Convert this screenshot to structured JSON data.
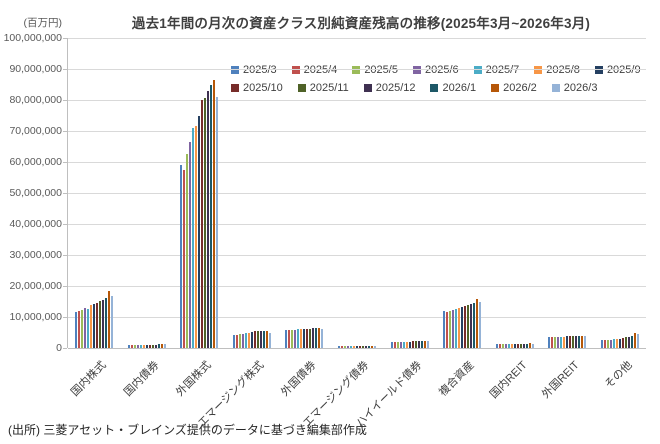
{
  "page": {
    "title": "過去1年間の月次の資産クラス別純資産残高の推移(2025年3月~2026年3月)",
    "source": "(出所) 三菱アセット・ブレインズ提供のデータに基づき編集部作成"
  },
  "chart_data": {
    "type": "bar",
    "title": "過去1年間の月次の資産クラス別純資産残高の推移(2025年3月~2026年3月)",
    "y_unit_label": "(百万円)",
    "xlabel": "",
    "ylabel": "百万円",
    "ylim": [
      0,
      100000000
    ],
    "y_tick_step": 10000000,
    "grid": true,
    "legend_position": "top-inside-two-rows",
    "legend_row_split": 7,
    "categories": [
      "国内株式",
      "国内債券",
      "外国株式",
      "エマージング株式",
      "外国債券",
      "エマージング債券",
      "ハイイールド債券",
      "複合資産",
      "国内REIT",
      "外国REIT",
      "その他"
    ],
    "series": [
      {
        "name": "2025/3",
        "color": "#4F81BD",
        "values": [
          11500000,
          1000000,
          59000000,
          4300000,
          5700000,
          700000,
          2000000,
          11900000,
          1300000,
          3600000,
          2500000
        ]
      },
      {
        "name": "2025/4",
        "color": "#C0504D",
        "values": [
          11900000,
          1000000,
          57500000,
          4300000,
          5700000,
          700000,
          2000000,
          11500000,
          1300000,
          3600000,
          2500000
        ]
      },
      {
        "name": "2025/5",
        "color": "#9BBB59",
        "values": [
          12300000,
          1000000,
          62500000,
          4500000,
          5800000,
          700000,
          2000000,
          12000000,
          1300000,
          3600000,
          2600000
        ]
      },
      {
        "name": "2025/6",
        "color": "#8064A2",
        "values": [
          12800000,
          1000000,
          66500000,
          4600000,
          5900000,
          700000,
          2100000,
          12300000,
          1300000,
          3700000,
          2700000
        ]
      },
      {
        "name": "2025/7",
        "color": "#4BACC6",
        "values": [
          12600000,
          1000000,
          71000000,
          4800000,
          6000000,
          700000,
          2100000,
          12500000,
          1300000,
          3700000,
          2800000
        ]
      },
      {
        "name": "2025/8",
        "color": "#F79646",
        "values": [
          13900000,
          1100000,
          71500000,
          5000000,
          6000000,
          700000,
          2100000,
          12800000,
          1300000,
          3700000,
          2900000
        ]
      },
      {
        "name": "2025/9",
        "color": "#254061",
        "values": [
          14300000,
          1100000,
          75000000,
          5300000,
          6100000,
          700000,
          2100000,
          13200000,
          1400000,
          3800000,
          3000000
        ]
      },
      {
        "name": "2025/10",
        "color": "#772C2A",
        "values": [
          14500000,
          1100000,
          80000000,
          5400000,
          6200000,
          700000,
          2200000,
          13500000,
          1400000,
          3800000,
          3200000
        ]
      },
      {
        "name": "2025/11",
        "color": "#4F6228",
        "values": [
          15100000,
          1100000,
          80500000,
          5500000,
          6200000,
          700000,
          2200000,
          13800000,
          1400000,
          3800000,
          3400000
        ]
      },
      {
        "name": "2025/12",
        "color": "#3F3151",
        "values": [
          15600000,
          1100000,
          83000000,
          5500000,
          6300000,
          700000,
          2200000,
          14200000,
          1400000,
          3900000,
          3600000
        ]
      },
      {
        "name": "2026/1",
        "color": "#1D5867",
        "values": [
          16100000,
          1200000,
          85000000,
          5600000,
          6300000,
          700000,
          2200000,
          14600000,
          1400000,
          3900000,
          3900000
        ]
      },
      {
        "name": "2026/2",
        "color": "#B65708",
        "values": [
          18500000,
          1200000,
          86500000,
          5500000,
          6400000,
          800000,
          2300000,
          15700000,
          1500000,
          4000000,
          4900000
        ]
      },
      {
        "name": "2026/3",
        "color": "#95B3D7",
        "values": [
          16900000,
          1200000,
          81000000,
          5000000,
          6200000,
          700000,
          2200000,
          15000000,
          1400000,
          3900000,
          4400000
        ]
      }
    ]
  }
}
